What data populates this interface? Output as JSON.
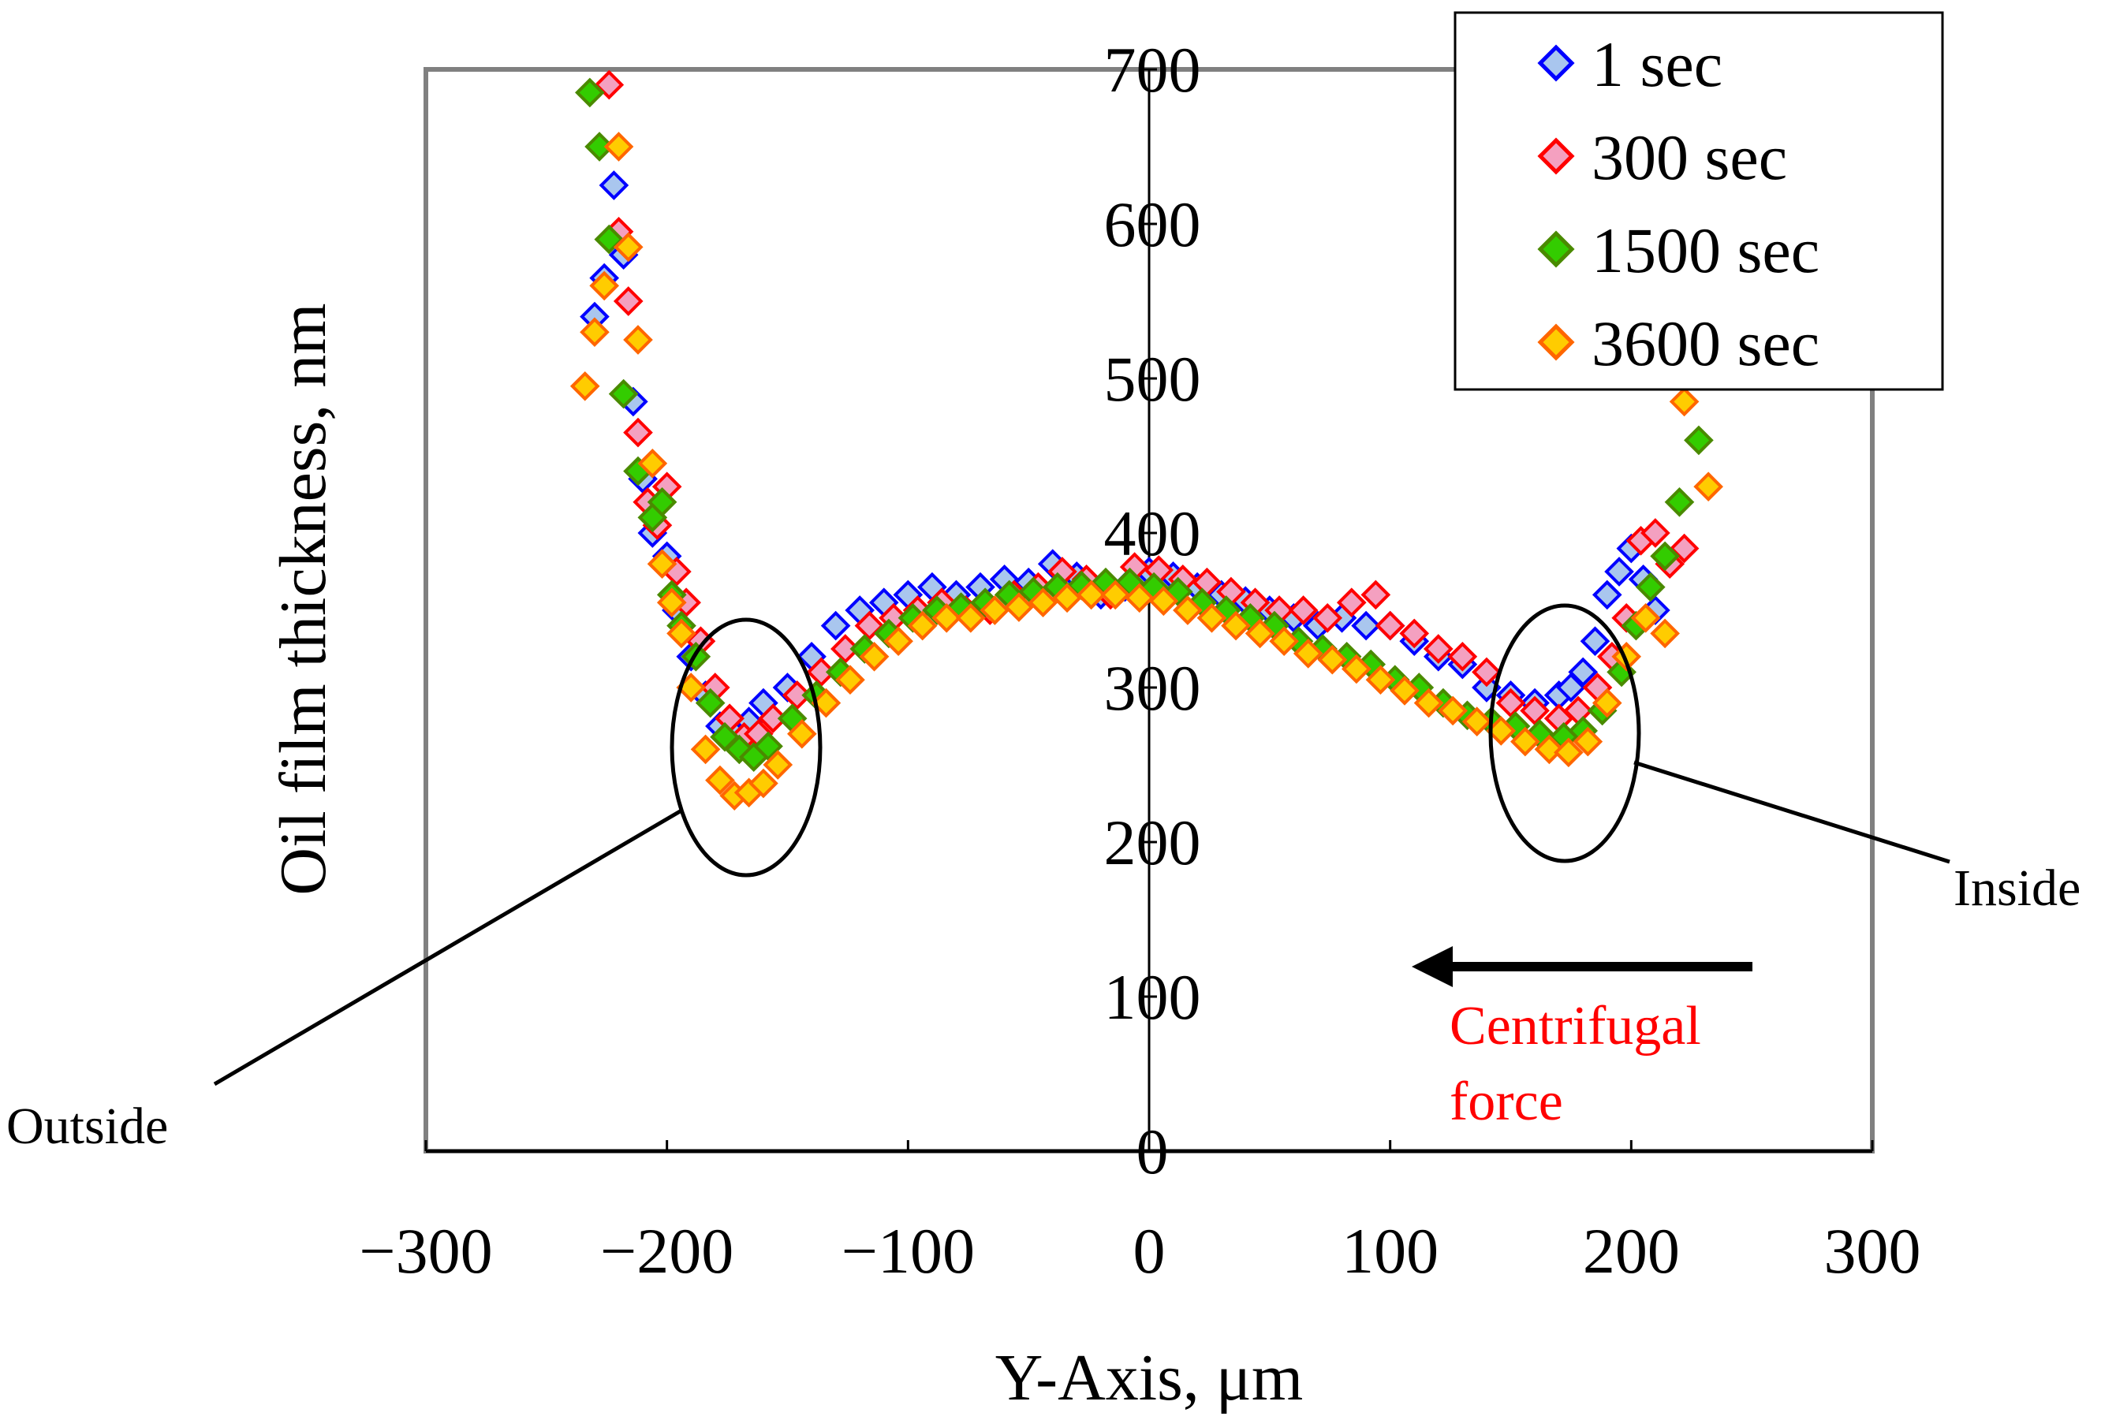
{
  "chart_data": {
    "type": "scatter",
    "title": "",
    "xlabel": "Y-Axis, μm",
    "ylabel": "Oil film thickness, nm",
    "xlim": [
      -300,
      300
    ],
    "ylim": [
      0,
      700
    ],
    "x_ticks": [
      "−300",
      "−200",
      "−100",
      "0",
      "100",
      "200",
      "300"
    ],
    "y_ticks": [
      "0",
      "100",
      "200",
      "300",
      "400",
      "500",
      "600",
      "700"
    ],
    "grid": false,
    "legend_position": "top-right",
    "series": [
      {
        "name": "1 sec",
        "marker": "diamond",
        "fill": "#a9c6ee",
        "stroke": "#0000ff",
        "x": [
          -230,
          -226,
          -222,
          -218,
          -214,
          -210,
          -206,
          -200,
          -196,
          -190,
          -184,
          -178,
          -172,
          -166,
          -160,
          -150,
          -140,
          -130,
          -120,
          -110,
          -100,
          -90,
          -80,
          -70,
          -60,
          -50,
          -40,
          -30,
          -20,
          -10,
          0,
          10,
          20,
          30,
          40,
          50,
          60,
          70,
          80,
          90,
          100,
          110,
          120,
          130,
          140,
          150,
          160,
          170,
          175,
          180,
          185,
          190,
          195,
          200,
          205,
          210
        ],
        "y": [
          540,
          565,
          625,
          580,
          485,
          435,
          400,
          385,
          350,
          320,
          295,
          275,
          270,
          278,
          290,
          300,
          320,
          340,
          350,
          355,
          360,
          365,
          360,
          365,
          370,
          368,
          380,
          372,
          360,
          365,
          375,
          372,
          365,
          360,
          356,
          350,
          345,
          340,
          345,
          340,
          340,
          330,
          320,
          315,
          300,
          295,
          290,
          295,
          300,
          310,
          330,
          360,
          375,
          390,
          370,
          350
        ]
      },
      {
        "name": "300 sec",
        "marker": "diamond",
        "fill": "#f4a0c0",
        "stroke": "#ff0000",
        "x": [
          -224,
          -220,
          -216,
          -212,
          -208,
          -204,
          -200,
          -196,
          -192,
          -186,
          -180,
          -174,
          -168,
          -162,
          -156,
          -146,
          -136,
          -126,
          -116,
          -106,
          -96,
          -86,
          -76,
          -66,
          -56,
          -46,
          -36,
          -26,
          -16,
          -6,
          4,
          14,
          24,
          34,
          44,
          54,
          64,
          74,
          84,
          94,
          100,
          110,
          120,
          130,
          140,
          150,
          160,
          170,
          178,
          186,
          192,
          198,
          204,
          210,
          216,
          222
        ],
        "y": [
          690,
          595,
          550,
          465,
          420,
          405,
          430,
          375,
          355,
          330,
          300,
          280,
          268,
          270,
          280,
          295,
          310,
          325,
          340,
          345,
          350,
          355,
          350,
          350,
          360,
          365,
          375,
          370,
          360,
          378,
          376,
          370,
          368,
          362,
          355,
          350,
          350,
          345,
          355,
          360,
          340,
          335,
          325,
          320,
          310,
          290,
          285,
          280,
          285,
          300,
          320,
          345,
          395,
          400,
          380,
          390
        ]
      },
      {
        "name": "1500 sec",
        "marker": "diamond",
        "fill": "#33cc00",
        "stroke": "#4a8a00",
        "x": [
          -232,
          -228,
          -224,
          -218,
          -212,
          -206,
          -202,
          -198,
          -194,
          -188,
          -182,
          -176,
          -170,
          -164,
          -158,
          -148,
          -138,
          -128,
          -118,
          -108,
          -98,
          -88,
          -78,
          -68,
          -58,
          -48,
          -38,
          -28,
          -18,
          -8,
          2,
          12,
          22,
          32,
          42,
          52,
          62,
          72,
          82,
          92,
          102,
          112,
          122,
          132,
          142,
          152,
          162,
          172,
          180,
          188,
          196,
          202,
          208,
          214,
          220,
          228
        ],
        "y": [
          685,
          650,
          590,
          490,
          440,
          410,
          420,
          360,
          340,
          320,
          290,
          268,
          260,
          255,
          262,
          280,
          295,
          310,
          325,
          335,
          345,
          350,
          352,
          355,
          360,
          362,
          365,
          366,
          368,
          368,
          365,
          362,
          355,
          350,
          345,
          340,
          330,
          325,
          320,
          315,
          305,
          300,
          290,
          282,
          278,
          275,
          270,
          268,
          272,
          285,
          310,
          340,
          365,
          385,
          420,
          460
        ]
      },
      {
        "name": "3600 sec",
        "marker": "diamond",
        "fill": "#ffcc00",
        "stroke": "#ff6600",
        "x": [
          -234,
          -230,
          -226,
          -220,
          -216,
          -212,
          -206,
          -202,
          -198,
          -194,
          -190,
          -184,
          -178,
          -172,
          -166,
          -160,
          -154,
          -144,
          -134,
          -124,
          -114,
          -104,
          -94,
          -84,
          -74,
          -64,
          -54,
          -44,
          -34,
          -24,
          -14,
          -4,
          6,
          16,
          26,
          36,
          46,
          56,
          66,
          76,
          86,
          96,
          106,
          116,
          126,
          136,
          146,
          156,
          166,
          174,
          182,
          190,
          198,
          206,
          214,
          222,
          232
        ],
        "y": [
          495,
          530,
          560,
          650,
          585,
          525,
          445,
          380,
          355,
          335,
          300,
          260,
          240,
          230,
          232,
          238,
          250,
          270,
          290,
          305,
          320,
          330,
          340,
          345,
          345,
          350,
          352,
          355,
          358,
          360,
          360,
          358,
          356,
          350,
          345,
          340,
          335,
          330,
          322,
          318,
          312,
          305,
          298,
          290,
          285,
          278,
          272,
          265,
          260,
          258,
          265,
          290,
          320,
          345,
          335,
          485,
          430
        ]
      }
    ],
    "annotations": {
      "outside": "Outside",
      "inside": "Inside",
      "force_line1": "Centrifugal",
      "force_line2": "force"
    }
  }
}
